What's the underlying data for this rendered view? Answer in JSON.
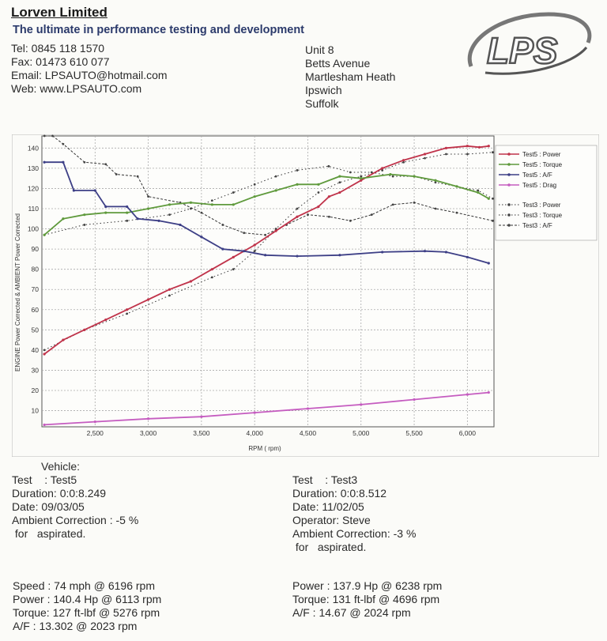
{
  "header": {
    "company": "Lorven Limited",
    "tagline": "The ultimate in performance testing and development",
    "tel": "Tel: 0845 118 1570",
    "fax": "Fax: 01473 610 077",
    "email": "Email: LPSAUTO@hotmail.com",
    "web": "Web: www.LPSAUTO.com",
    "address": [
      "Unit 8",
      "Betts Avenue",
      "Martlesham Heath",
      "Ipswich",
      "Suffolk"
    ],
    "logo_text": "LPS"
  },
  "chart_data": {
    "type": "line",
    "xlabel": "RPM ( rpm)",
    "ylabel": "ENGINE Power Corrected & AMBIENT Power Corrected",
    "xlim": [
      2000,
      6250
    ],
    "ylim": [
      2,
      146
    ],
    "x_ticks": [
      2500,
      3000,
      3500,
      4000,
      4500,
      5000,
      5500,
      6000
    ],
    "x_tick_labels": [
      "2,500",
      "3,000",
      "3,500",
      "4,000",
      "4,500",
      "5,000",
      "5,500",
      "6,000"
    ],
    "y_ticks": [
      10,
      20,
      30,
      40,
      50,
      60,
      70,
      80,
      90,
      100,
      110,
      120,
      130,
      140
    ],
    "grid": true,
    "legend_position": "right",
    "series": [
      {
        "name": "Test5 : Power",
        "color": "#c0334a",
        "style": "solid",
        "points": [
          [
            2023,
            38
          ],
          [
            2200,
            45
          ],
          [
            2400,
            50
          ],
          [
            2600,
            55
          ],
          [
            2800,
            60
          ],
          [
            3000,
            65
          ],
          [
            3200,
            70
          ],
          [
            3400,
            74
          ],
          [
            3600,
            80
          ],
          [
            3800,
            86
          ],
          [
            4000,
            92
          ],
          [
            4200,
            99
          ],
          [
            4400,
            106
          ],
          [
            4600,
            111
          ],
          [
            4700,
            116
          ],
          [
            4800,
            118
          ],
          [
            5000,
            124
          ],
          [
            5200,
            130
          ],
          [
            5400,
            134
          ],
          [
            5600,
            137
          ],
          [
            5800,
            140
          ],
          [
            6000,
            141
          ],
          [
            6113,
            140.4
          ],
          [
            6200,
            141
          ]
        ]
      },
      {
        "name": "Test5 : Torque",
        "color": "#5f9a3c",
        "style": "solid",
        "points": [
          [
            2023,
            97
          ],
          [
            2200,
            105
          ],
          [
            2400,
            107
          ],
          [
            2600,
            108
          ],
          [
            2800,
            108
          ],
          [
            3000,
            110
          ],
          [
            3200,
            112
          ],
          [
            3400,
            113
          ],
          [
            3600,
            112
          ],
          [
            3800,
            112
          ],
          [
            4000,
            116
          ],
          [
            4200,
            119
          ],
          [
            4400,
            122
          ],
          [
            4600,
            122
          ],
          [
            4800,
            126
          ],
          [
            5000,
            125
          ],
          [
            5276,
            127
          ],
          [
            5500,
            126
          ],
          [
            5700,
            124
          ],
          [
            5900,
            121
          ],
          [
            6100,
            118
          ],
          [
            6200,
            115
          ]
        ]
      },
      {
        "name": "Test5 : A/F",
        "color": "#3d3f86",
        "style": "solid",
        "points": [
          [
            2023,
            133
          ],
          [
            2200,
            133
          ],
          [
            2300,
            119
          ],
          [
            2500,
            119
          ],
          [
            2600,
            111
          ],
          [
            2800,
            111
          ],
          [
            2900,
            105
          ],
          [
            3100,
            104
          ],
          [
            3300,
            102
          ],
          [
            3500,
            96
          ],
          [
            3700,
            90
          ],
          [
            3900,
            89
          ],
          [
            4100,
            87
          ],
          [
            4400,
            86.5
          ],
          [
            4800,
            87
          ],
          [
            5200,
            88.5
          ],
          [
            5600,
            89
          ],
          [
            5800,
            88.5
          ],
          [
            6000,
            86
          ],
          [
            6200,
            83
          ]
        ]
      },
      {
        "name": "Test5 : Drag",
        "color": "#c55cc0",
        "style": "solid",
        "points": [
          [
            2023,
            3
          ],
          [
            2500,
            4.5
          ],
          [
            3000,
            6
          ],
          [
            3500,
            7
          ],
          [
            4000,
            9
          ],
          [
            4500,
            11
          ],
          [
            5000,
            13
          ],
          [
            5500,
            15.5
          ],
          [
            6000,
            18
          ],
          [
            6200,
            19
          ]
        ]
      }
    ],
    "series_test3": [
      {
        "name": "Test3 : Power",
        "color": "#333333",
        "style": "dotted",
        "points": [
          [
            2024,
            40
          ],
          [
            2400,
            50
          ],
          [
            2800,
            58
          ],
          [
            3200,
            67
          ],
          [
            3600,
            76
          ],
          [
            3800,
            80
          ],
          [
            4000,
            89
          ],
          [
            4200,
            100
          ],
          [
            4400,
            110
          ],
          [
            4600,
            118
          ],
          [
            4800,
            123
          ],
          [
            5000,
            126
          ],
          [
            5200,
            129
          ],
          [
            5400,
            133
          ],
          [
            5600,
            135
          ],
          [
            5800,
            137
          ],
          [
            6000,
            137
          ],
          [
            6238,
            137.9
          ]
        ]
      },
      {
        "name": "Test3 : Torque",
        "color": "#333333",
        "style": "dotted",
        "points": [
          [
            2024,
            97
          ],
          [
            2400,
            102
          ],
          [
            2800,
            104
          ],
          [
            3200,
            107
          ],
          [
            3400,
            110
          ],
          [
            3600,
            114
          ],
          [
            3800,
            118
          ],
          [
            4000,
            122
          ],
          [
            4200,
            126
          ],
          [
            4400,
            129
          ],
          [
            4696,
            131
          ],
          [
            4900,
            128
          ],
          [
            5100,
            128
          ],
          [
            5300,
            126
          ],
          [
            5500,
            126
          ],
          [
            5700,
            123
          ],
          [
            5900,
            121
          ],
          [
            6100,
            119
          ],
          [
            6238,
            115
          ]
        ]
      },
      {
        "name": "Test3 : A/F",
        "color": "#333333",
        "style": "dashed",
        "points": [
          [
            2024,
            146
          ],
          [
            2100,
            146
          ],
          [
            2200,
            142
          ],
          [
            2400,
            133
          ],
          [
            2600,
            132
          ],
          [
            2700,
            127
          ],
          [
            2900,
            126
          ],
          [
            3000,
            116
          ],
          [
            3300,
            113
          ],
          [
            3500,
            108
          ],
          [
            3700,
            102
          ],
          [
            3900,
            98
          ],
          [
            4100,
            97
          ],
          [
            4300,
            102
          ],
          [
            4500,
            107
          ],
          [
            4700,
            106
          ],
          [
            4900,
            104
          ],
          [
            5100,
            107
          ],
          [
            5300,
            112
          ],
          [
            5500,
            113
          ],
          [
            5700,
            110
          ],
          [
            5900,
            108
          ],
          [
            6238,
            104
          ]
        ]
      }
    ]
  },
  "test5": {
    "vehicle": "Vehicle:",
    "test": "Test    : Test5",
    "duration": "Duration: 0:0:8.249",
    "date": "Date: 09/03/05",
    "ambient": "Ambient Correction : -5 %",
    "aspirated": " for   aspirated.",
    "speed": "Speed : 74 mph @ 6196 rpm",
    "power": "Power : 140.4 Hp @ 6113 rpm",
    "torque": "Torque: 127 ft-lbf @ 5276 rpm",
    "af": "A/F : 13.302 @ 2023 rpm"
  },
  "test3": {
    "test": "Test    : Test3",
    "duration": "Duration: 0:0:8.512",
    "date": "Date: 11/02/05",
    "operator": "Operator: Steve",
    "ambient": "Ambient Correction: -3 %",
    "aspirated": " for   aspirated.",
    "power": "Power : 137.9 Hp @ 6238 rpm",
    "torque": "Torque: 131 ft-lbf @ 4696 rpm",
    "af": "A/F : 14.67 @ 2024 rpm"
  }
}
